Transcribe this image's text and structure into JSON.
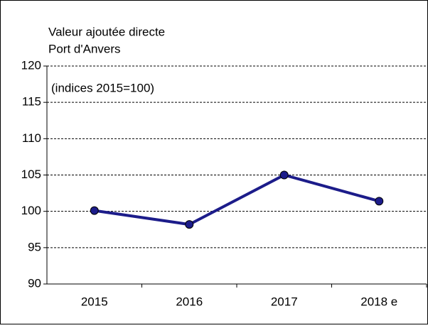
{
  "chart_data": {
    "type": "line",
    "title": "Valeur ajoutée directe",
    "subtitle": "Port d'Anvers",
    "annotation": "(indices 2015=100)",
    "categories": [
      "2015",
      "2016",
      "2017",
      "2018 e"
    ],
    "series": [
      {
        "name": "Valeur ajoutée directe",
        "color": "#1c1c8a",
        "values": [
          100.1,
          98.2,
          105.0,
          101.4
        ]
      }
    ],
    "ylim": [
      90,
      120
    ],
    "yticks": [
      90,
      95,
      100,
      105,
      110,
      115,
      120
    ],
    "grid": true
  }
}
